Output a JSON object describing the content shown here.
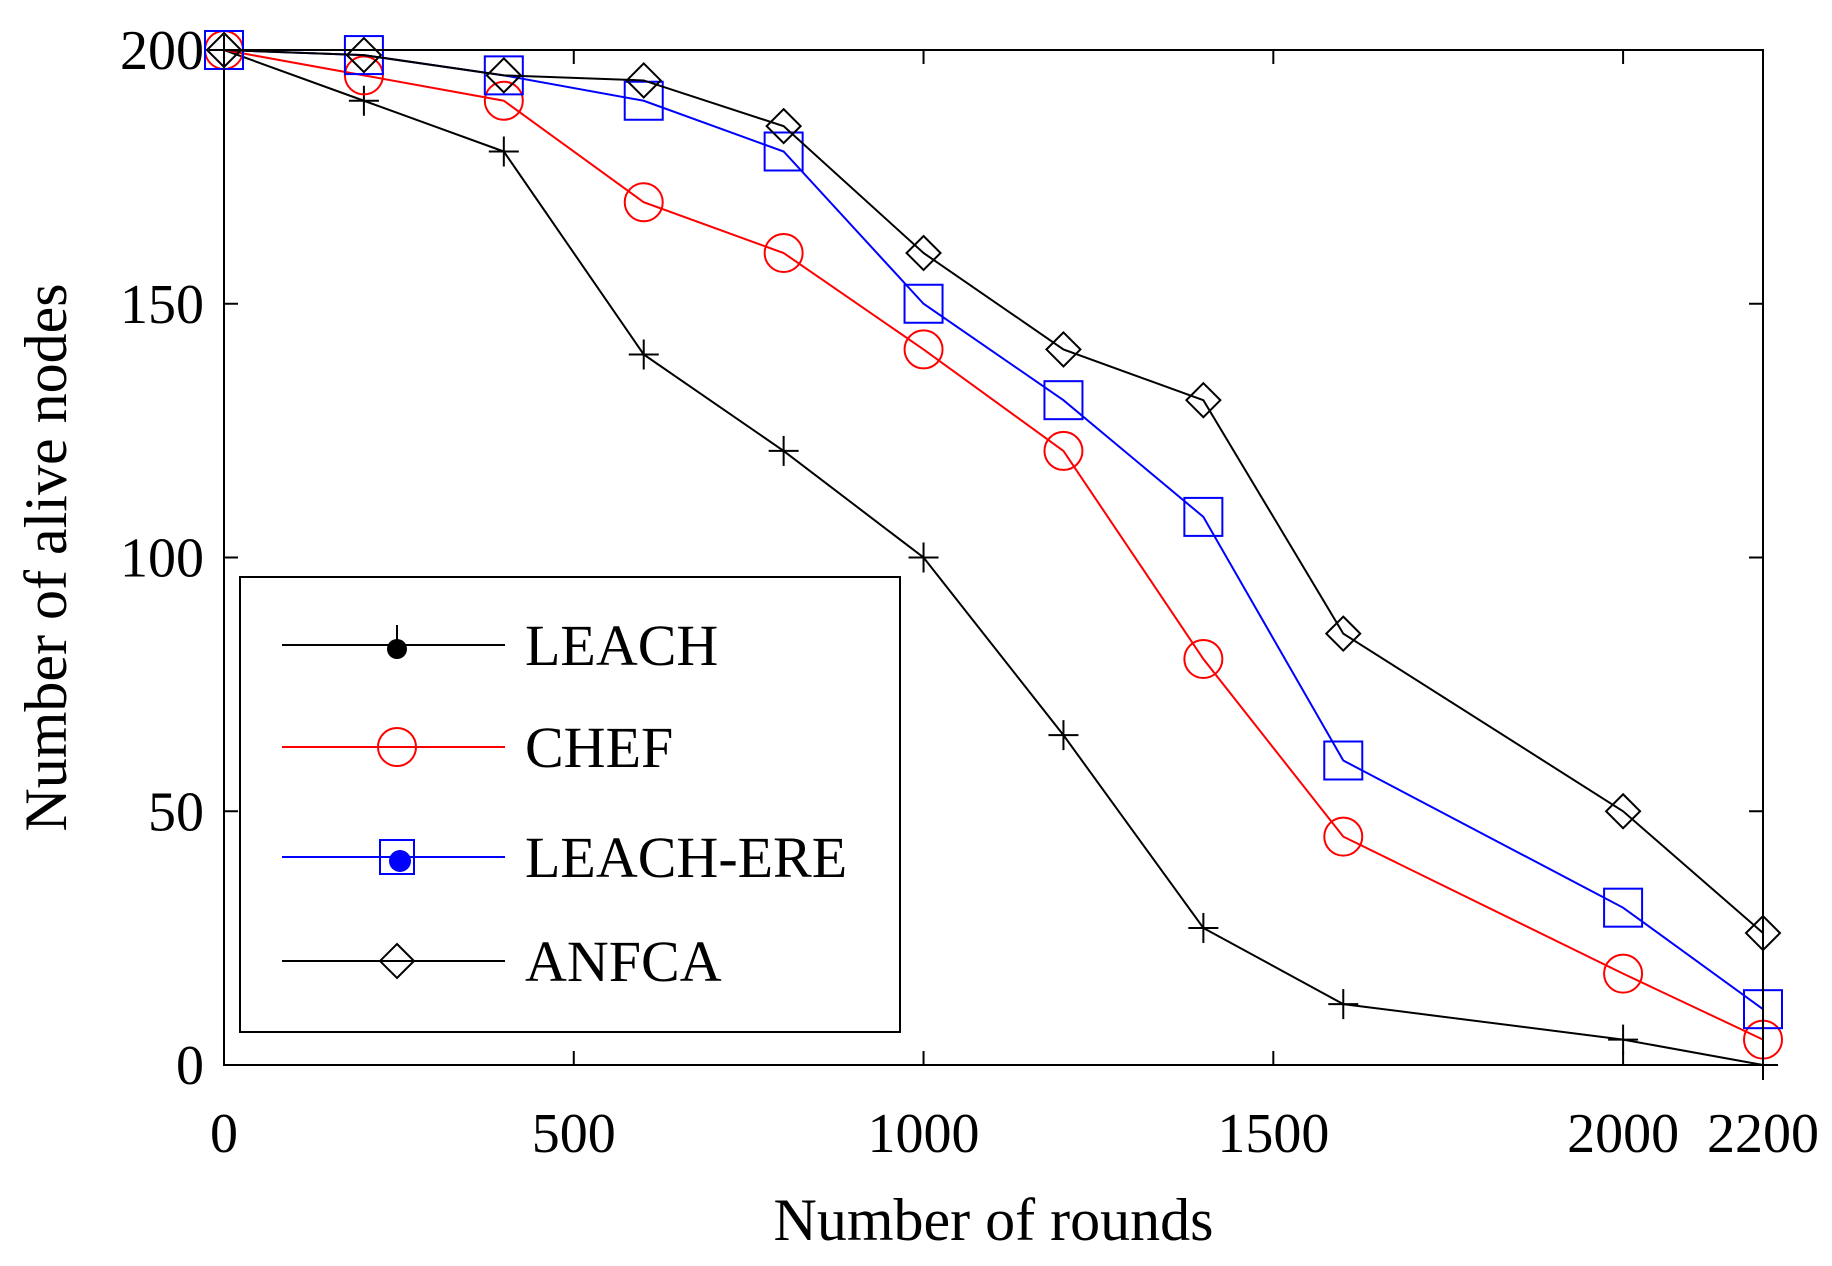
{
  "chart_data": {
    "type": "line",
    "title": "",
    "xlabel": "Number of rounds",
    "ylabel": "Number of alive nodes",
    "xlim": [
      0,
      2200
    ],
    "ylim": [
      0,
      200
    ],
    "xticks": [
      0,
      500,
      1000,
      1500,
      2000,
      2200
    ],
    "xtick_labels": [
      "0",
      "500",
      "1000",
      "1500",
      "2000",
      "2200"
    ],
    "yticks": [
      0,
      50,
      100,
      150,
      200
    ],
    "ytick_labels": [
      "0",
      "50",
      "100",
      "150",
      "200"
    ],
    "grid": false,
    "legend_position": "lower-left",
    "series": [
      {
        "name": "LEACH",
        "color": "#000000",
        "marker": "plus",
        "legend_marker": "dot",
        "x": [
          0,
          200,
          400,
          600,
          800,
          1000,
          1200,
          1400,
          1600,
          2000,
          2200
        ],
        "y": [
          200,
          190,
          180,
          140,
          121,
          100,
          65,
          27,
          12,
          5,
          0
        ]
      },
      {
        "name": "CHEF",
        "color": "#ff0000",
        "marker": "circle",
        "legend_marker": "circle",
        "x": [
          0,
          200,
          400,
          600,
          800,
          1000,
          1200,
          1400,
          1600,
          2000,
          2200
        ],
        "y": [
          200,
          195,
          190,
          170,
          160,
          141,
          121,
          80,
          45,
          18,
          5
        ]
      },
      {
        "name": "LEACH-ERE",
        "color": "#0000ff",
        "marker": "square",
        "legend_marker": "square-dot",
        "x": [
          0,
          200,
          400,
          600,
          800,
          1000,
          1200,
          1400,
          1600,
          2000,
          2200
        ],
        "y": [
          200,
          199,
          195,
          190,
          180,
          150,
          131,
          108,
          60,
          31,
          11
        ]
      },
      {
        "name": "ANFCA",
        "color": "#000000",
        "marker": "diamond",
        "legend_marker": "diamond",
        "x": [
          0,
          200,
          400,
          600,
          800,
          1000,
          1200,
          1400,
          1600,
          2000,
          2200
        ],
        "y": [
          200,
          199,
          195,
          194,
          185,
          160,
          141,
          131,
          85,
          50,
          26
        ]
      }
    ]
  }
}
